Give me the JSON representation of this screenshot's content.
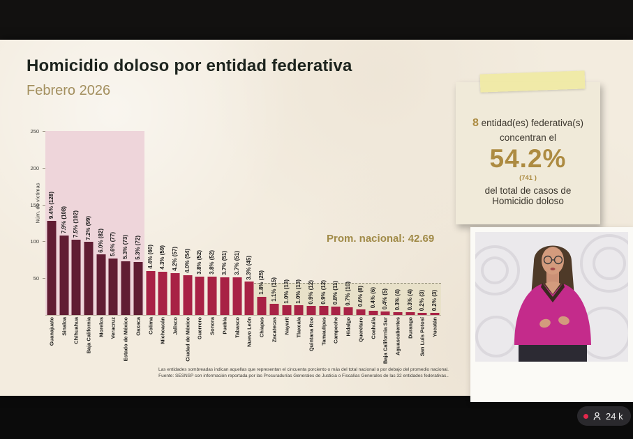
{
  "header": {
    "title": "Homicidio doloso por entidad federativa",
    "subtitle": "Febrero 2026"
  },
  "chart_data": {
    "type": "bar",
    "ylabel": "Núm. de víctimas",
    "ylim": [
      0,
      250
    ],
    "yticks": [
      50,
      100,
      150,
      200,
      250
    ],
    "categories": [
      "Guanajuato",
      "Sinaloa",
      "Chihuahua",
      "Baja California",
      "Morelos",
      "Veracruz",
      "Estado de México",
      "Oaxaca",
      "Colima",
      "Michoacán",
      "Jalisco",
      "Ciudad de México",
      "Guerrero",
      "Sonora",
      "Puebla",
      "Tabasco",
      "Nuevo León",
      "Chiapas",
      "Zacatecas",
      "Nayarit",
      "Tlaxcala",
      "Quintana Roo",
      "Tamaulipas",
      "Campeche",
      "Hidalgo",
      "Querétaro",
      "Coahuila",
      "Baja California Sur",
      "Aguascalientes",
      "Durango",
      "San Luis Potosí",
      "Yucatán"
    ],
    "values": [
      128,
      108,
      102,
      99,
      82,
      77,
      73,
      72,
      60,
      59,
      57,
      54,
      52,
      52,
      51,
      51,
      45,
      25,
      15,
      13,
      13,
      12,
      12,
      11,
      10,
      8,
      6,
      5,
      4,
      4,
      3,
      3
    ],
    "bar_labels": [
      "9.4% (128)",
      "7.9% (108)",
      "7.5% (102)",
      "7.2% (99)",
      "6.0% (82)",
      "5.6% (77)",
      "5.3% (73)",
      "5.3% (72)",
      "4.4% (60)",
      "4.3% (59)",
      "4.2% (57)",
      "4.0% (54)",
      "3.8% (52)",
      "3.8% (52)",
      "3.7% (51)",
      "3.7% (51)",
      "3.3% (45)",
      "1.8% (25)",
      "1.1% (15)",
      "1.0% (13)",
      "1.0% (13)",
      "0.9% (12)",
      "0.9% (12)",
      "0.8% (11)",
      "0.7% (10)",
      "0.6% (8)",
      "0.4% (6)",
      "0.4% (5)",
      "0.3% (4)",
      "0.3% (4)",
      "0.2% (3)",
      "0.2% (3)"
    ],
    "promedio_nacional": 42.69,
    "promedio_label": "Prom. nacional: 42.69",
    "highlight_first_n": 8,
    "legend_position": "none",
    "grid": false,
    "colors": {
      "bar_highlighted": "#611d33",
      "bar_normal": "#a82245",
      "region_top_concentration": "#eed5da",
      "region_below_average": "#e8e1c9",
      "accent_gold": "#a08a47"
    }
  },
  "note_card": {
    "count": "8",
    "entities_text": " entidad(es) federativa(s)",
    "line2": "concentran el",
    "big_percent": "54.2%",
    "sub_value": "(741 )",
    "line3": "del total de casos de",
    "line4": "Homicidio doloso"
  },
  "footer": {
    "line1": "Las entidades sombreadas indican aquellas que representan el cincuenta porciento o más del total nacional o por debajo del promedio nacional.",
    "line2": "Fuente: SESNSP con información reportada por las Procuradurías Generales de Justicia o Fiscalías Generales de las 32 entidades federativas.."
  },
  "overlay": {
    "viewer_count": "24 k"
  }
}
